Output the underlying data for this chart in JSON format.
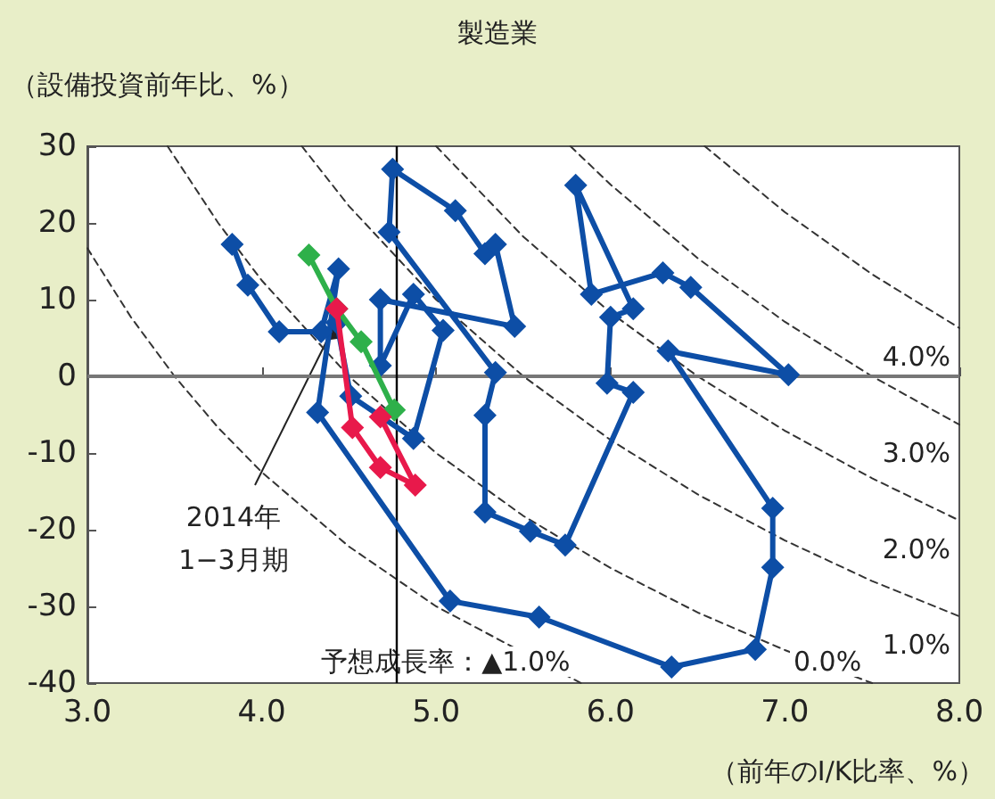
{
  "chart_data": {
    "type": "line",
    "title": "製造業",
    "ylabel": "（設備投資前年比、%）",
    "xlabel": "（前年のI/K比率、%）",
    "xlim": [
      3,
      8
    ],
    "xticks": [
      {
        "value": 3,
        "label": "3.0"
      },
      {
        "value": 4,
        "label": "4.0"
      },
      {
        "value": 5,
        "label": "5.0"
      },
      {
        "value": 6,
        "label": "6.0"
      },
      {
        "value": 7,
        "label": "7.0"
      },
      {
        "value": 8,
        "label": "8.0"
      }
    ],
    "ylim": [
      -40,
      30
    ],
    "yticks": [
      -40,
      -30,
      -20,
      -10,
      0,
      10,
      20,
      30
    ],
    "grid": false,
    "ref_lines": [
      {
        "axis": "y",
        "value": 0,
        "color": "#777777"
      },
      {
        "axis": "x",
        "value": 4.77,
        "color": "#000000"
      }
    ],
    "series": [
      {
        "name": "予想成長率：▲1.0%",
        "color": "#333333",
        "marker": "none",
        "line_style": "dashed",
        "x": [
          3.0,
          3.25,
          3.5,
          3.75,
          4.0,
          4.5,
          5.0,
          5.83
        ],
        "values": [
          16.7,
          7.7,
          0,
          -6.7,
          -12.5,
          -22.2,
          -30,
          -40
        ]
      },
      {
        "name": "0.0%",
        "color": "#333333",
        "marker": "none",
        "line_style": "dashed",
        "x": [
          3.46,
          3.75,
          4.0,
          4.5,
          5.0,
          5.5,
          6.0,
          6.5,
          7.0,
          7.5
        ],
        "values": [
          30,
          20,
          12.5,
          0,
          -10,
          -18.2,
          -25,
          -30.8,
          -35.7,
          -40
        ]
      },
      {
        "name": "1.0%",
        "color": "#333333",
        "marker": "none",
        "line_style": "dashed",
        "x": [
          4.23,
          4.5,
          5.0,
          5.5,
          6.0,
          6.5,
          7.0,
          7.5,
          8.0
        ],
        "values": [
          30,
          22.2,
          10,
          0,
          -8.3,
          -15.4,
          -21.4,
          -26.7,
          -31.3
        ]
      },
      {
        "name": "2.0%",
        "color": "#333333",
        "marker": "none",
        "line_style": "dashed",
        "x": [
          5.0,
          5.5,
          6.0,
          6.5,
          7.0,
          7.5,
          8.0
        ],
        "values": [
          30,
          18.2,
          8.3,
          0,
          -7.1,
          -13.3,
          -18.8
        ]
      },
      {
        "name": "3.0%",
        "color": "#333333",
        "marker": "none",
        "line_style": "dashed",
        "x": [
          5.77,
          6.0,
          6.5,
          7.0,
          7.5,
          8.0
        ],
        "values": [
          30,
          25,
          15.4,
          7.1,
          0,
          -6.3
        ]
      },
      {
        "name": "4.0%",
        "color": "#333333",
        "marker": "none",
        "line_style": "dashed",
        "x": [
          6.54,
          7.0,
          7.5,
          8.0
        ],
        "values": [
          30,
          21.4,
          13.3,
          6.3
        ]
      },
      {
        "color": "#0d4ea6",
        "marker": "diamond",
        "line_style": "solid",
        "x": [
          3.83,
          3.92,
          4.1,
          4.34,
          4.44,
          4.32,
          5.08,
          5.59,
          6.35,
          6.83,
          6.93,
          6.93,
          6.33,
          7.02,
          6.46,
          6.3,
          5.89,
          5.8,
          6.13,
          6.0,
          5.98,
          6.13,
          5.74,
          5.54,
          5.28,
          5.28,
          5.34,
          4.73,
          4.75,
          5.11,
          5.28,
          5.34,
          5.45,
          4.68,
          4.68,
          4.87,
          5.04,
          4.87,
          4.51,
          4.43
        ],
        "values": [
          17.2,
          11.9,
          5.8,
          5.8,
          14.0,
          -4.7,
          -29.3,
          -31.4,
          -37.9,
          -35.6,
          -24.9,
          -17.2,
          3.3,
          0.2,
          11.6,
          13.5,
          10.7,
          24.9,
          8.8,
          7.7,
          -0.9,
          -2.1,
          -22.0,
          -20.2,
          -17.7,
          -5.1,
          0.5,
          18.8,
          27.0,
          21.6,
          16.0,
          17.2,
          6.5,
          10.0,
          1.4,
          10.7,
          6.0,
          -8.1,
          -2.6,
          7.0
        ]
      },
      {
        "color": "#2eb04a",
        "marker": "diamond",
        "line_style": "solid",
        "x": [
          4.27,
          4.43,
          4.57,
          4.76
        ],
        "values": [
          15.8,
          8.8,
          4.5,
          -4.4
        ]
      },
      {
        "color": "#e8194b",
        "marker": "diamond",
        "line_style": "solid",
        "x": [
          4.43,
          4.52,
          4.68,
          4.88,
          4.68
        ],
        "values": [
          8.8,
          -6.7,
          -11.9,
          -14.2,
          -5.3
        ]
      }
    ],
    "annotations": [
      {
        "text": "2014年\n1−3月期",
        "x": 4.43,
        "y": 7.0
      }
    ]
  }
}
